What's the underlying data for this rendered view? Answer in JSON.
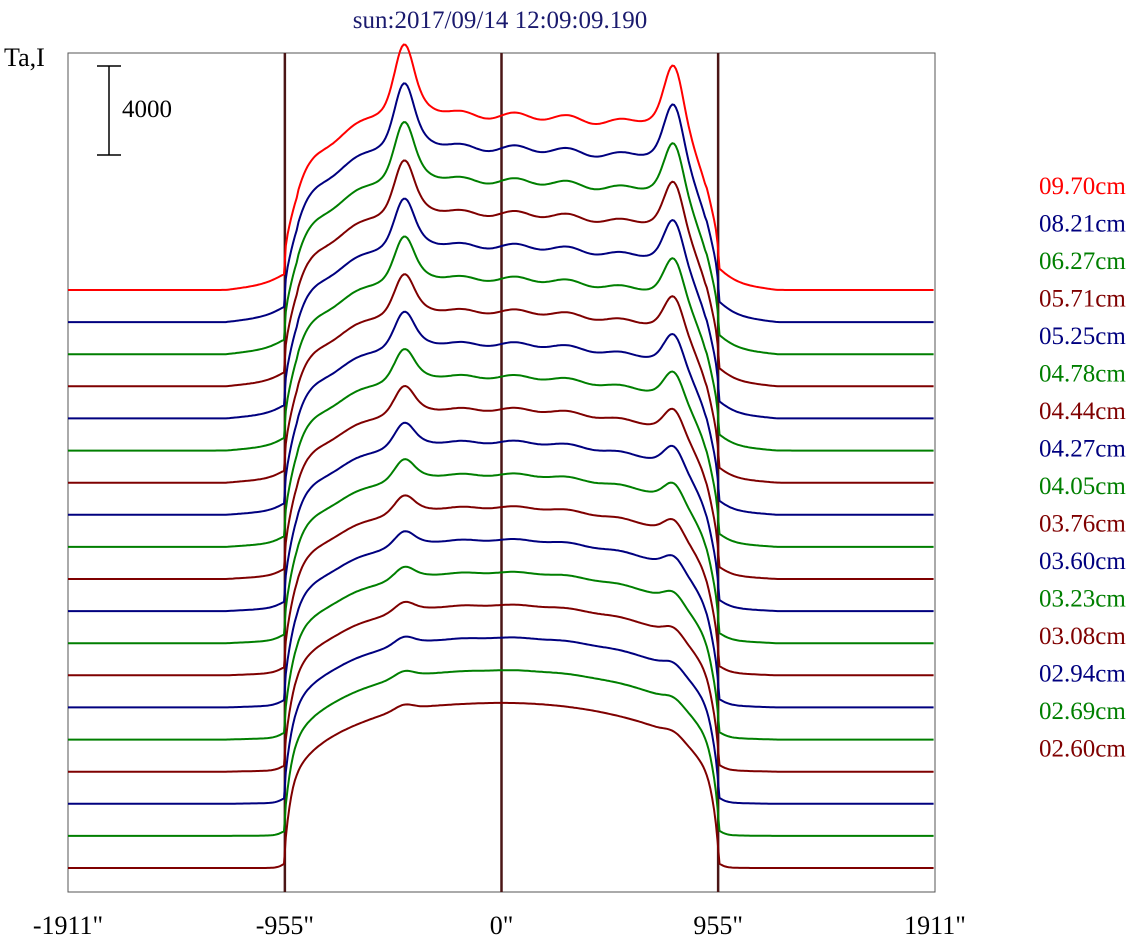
{
  "chart_data": {
    "type": "line",
    "title": "sun:2017/09/14 12:09:09.190",
    "ylabel": "Ta,I",
    "xlabel": "",
    "scale_bar_label": "4000",
    "scale_bar_value": 4000,
    "xlim": [
      -1911,
      1911
    ],
    "x_ticks": [
      {
        "value": -1911,
        "label": "-1911\""
      },
      {
        "value": -955,
        "label": "-955\""
      },
      {
        "value": 0,
        "label": "0\""
      },
      {
        "value": 955,
        "label": "955\""
      },
      {
        "value": 1911,
        "label": "1911\""
      }
    ],
    "vertical_markers": [
      -955,
      0,
      955
    ],
    "vertical_marker_color": "#4a1515",
    "grid": false,
    "legend_position": "right",
    "series_colors": [
      "#ff0000",
      "#00007f",
      "#007f00",
      "#7f0000"
    ],
    "series": [
      {
        "name": "09.70cm",
        "color": "#ff0000"
      },
      {
        "name": "08.21cm",
        "color": "#00007f"
      },
      {
        "name": "06.27cm",
        "color": "#007f00"
      },
      {
        "name": "05.71cm",
        "color": "#7f0000"
      },
      {
        "name": "05.25cm",
        "color": "#00007f"
      },
      {
        "name": "04.78cm",
        "color": "#007f00"
      },
      {
        "name": "04.44cm",
        "color": "#7f0000"
      },
      {
        "name": "04.27cm",
        "color": "#00007f"
      },
      {
        "name": "04.05cm",
        "color": "#007f00"
      },
      {
        "name": "03.76cm",
        "color": "#7f0000"
      },
      {
        "name": "03.60cm",
        "color": "#00007f"
      },
      {
        "name": "03.23cm",
        "color": "#007f00"
      },
      {
        "name": "03.08cm",
        "color": "#7f0000"
      },
      {
        "name": "02.94cm",
        "color": "#00007f"
      },
      {
        "name": "02.69cm",
        "color": "#007f00"
      },
      {
        "name": "02.60cm",
        "color": "#7f0000"
      }
    ],
    "unlabeled_trace_colors": [
      "#00007f",
      "#007f00",
      "#7f0000"
    ],
    "trace_shape": {
      "quiet_sun_level": 7000,
      "peak_positions": [
        -430,
        760
      ],
      "bright_peak_amplitude_top": 4200,
      "bright_peak_amplitude_bottom": 400
    }
  }
}
